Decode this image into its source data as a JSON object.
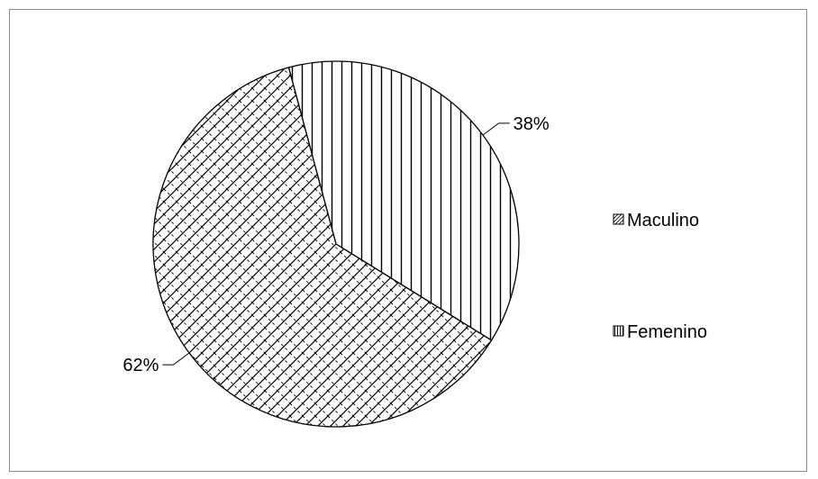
{
  "chart_data": {
    "type": "pie",
    "title": "",
    "series": [
      {
        "name": "Maculino",
        "value": 62,
        "label": "62%",
        "pattern": "crosshatch"
      },
      {
        "name": "Femenino",
        "value": 38,
        "label": "38%",
        "pattern": "vertical"
      }
    ],
    "legend": {
      "position": "right",
      "items": [
        "Maculino",
        "Femenino"
      ]
    },
    "colors": {
      "stroke": "#000000",
      "background": "#ffffff",
      "frame": "#8c8c8c"
    }
  }
}
